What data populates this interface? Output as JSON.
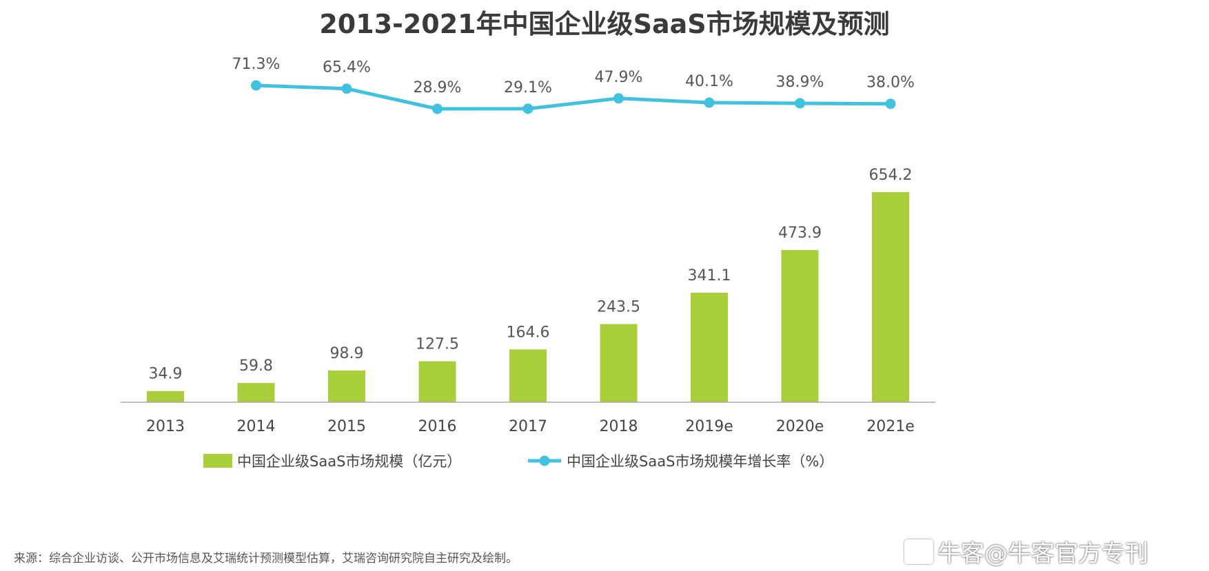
{
  "chart_data": {
    "type": "bar",
    "title": "2013-2021年中国企业级SaaS市场规模及预测",
    "categories": [
      "2013",
      "2014",
      "2015",
      "2016",
      "2017",
      "2018",
      "2019e",
      "2020e",
      "2021e"
    ],
    "series": [
      {
        "name": "中国企业级SaaS市场规模（亿元）",
        "type": "bar",
        "values": [
          34.9,
          59.8,
          98.9,
          127.5,
          164.6,
          243.5,
          341.1,
          473.9,
          654.2
        ],
        "labels": [
          "34.9",
          "59.8",
          "98.9",
          "127.5",
          "164.6",
          "243.5",
          "341.1",
          "473.9",
          "654.2"
        ],
        "color": "#a8cf3a"
      },
      {
        "name": "中国企业级SaaS市场规模年增长率（%）",
        "type": "line",
        "values": [
          null,
          71.3,
          65.4,
          28.9,
          29.1,
          47.9,
          40.1,
          38.9,
          38.0
        ],
        "labels": [
          "",
          "71.3%",
          "65.4%",
          "28.9%",
          "29.1%",
          "47.9%",
          "40.1%",
          "38.9%",
          "38.0%"
        ],
        "color": "#3fc1e0"
      }
    ],
    "ylim": [
      0,
      700
    ],
    "grid": false,
    "legend": "bottom"
  },
  "source": "来源：综合企业访谈、公开市场信息及艾瑞统计预测模型估算，艾瑞咨询研究院自主研究及绘制。",
  "watermark": "牛客@牛客官方专刊"
}
